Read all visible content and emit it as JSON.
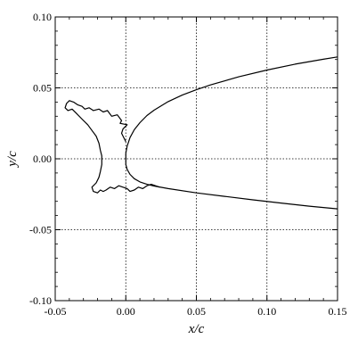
{
  "chart_data": {
    "type": "line",
    "title": "",
    "xlabel": "x/c",
    "ylabel": "y/c",
    "xlim": [
      -0.05,
      0.15
    ],
    "ylim": [
      -0.1,
      0.1
    ],
    "grid": true,
    "x_ticks": [
      -0.05,
      0.0,
      0.05,
      0.1,
      0.15
    ],
    "x_tick_labels": [
      "-0.05",
      "0.00",
      "0.05",
      "0.10",
      "0.15"
    ],
    "y_ticks": [
      -0.1,
      -0.05,
      0.0,
      0.05,
      0.1
    ],
    "y_tick_labels": [
      "-0.10",
      "-0.05",
      "0.00",
      "0.05",
      "0.10"
    ],
    "series": [
      {
        "points": [
          [
            0.15,
            0.0718
          ],
          [
            0.14,
            0.0702
          ],
          [
            0.12,
            0.0667
          ],
          [
            0.1,
            0.0626
          ],
          [
            0.08,
            0.0578
          ],
          [
            0.06,
            0.0521
          ],
          [
            0.05,
            0.0487
          ],
          [
            0.04,
            0.0449
          ],
          [
            0.03,
            0.0403
          ],
          [
            0.02,
            0.0343
          ],
          [
            0.015,
            0.0305
          ],
          [
            0.01,
            0.0255
          ],
          [
            0.006,
            0.0205
          ],
          [
            0.003,
            0.015
          ],
          [
            0.001,
            0.009
          ],
          [
            0.0,
            0.004
          ],
          [
            0.0,
            0.0
          ],
          [
            0.0,
            -0.004
          ],
          [
            0.001,
            -0.0075
          ],
          [
            0.003,
            -0.011
          ],
          [
            0.006,
            -0.014
          ],
          [
            0.01,
            -0.0163
          ],
          [
            0.015,
            -0.018
          ],
          [
            0.02,
            -0.0192
          ],
          [
            0.03,
            -0.021
          ],
          [
            0.05,
            -0.024
          ],
          [
            0.07,
            -0.0265
          ],
          [
            0.09,
            -0.0289
          ],
          [
            0.11,
            -0.0312
          ],
          [
            0.13,
            -0.0334
          ],
          [
            0.15,
            -0.0353
          ]
        ]
      },
      {
        "points": [
          [
            0.0,
            0.012
          ],
          [
            -0.003,
            0.018
          ],
          [
            -0.002,
            0.021
          ],
          [
            0.001,
            0.024
          ],
          [
            -0.004,
            0.025
          ],
          [
            -0.003,
            0.027
          ],
          [
            -0.006,
            0.031
          ],
          [
            -0.01,
            0.03
          ],
          [
            -0.013,
            0.034
          ],
          [
            -0.016,
            0.033
          ],
          [
            -0.019,
            0.035
          ],
          [
            -0.023,
            0.034
          ],
          [
            -0.026,
            0.036
          ],
          [
            -0.029,
            0.035
          ],
          [
            -0.031,
            0.037
          ],
          [
            -0.034,
            0.038
          ],
          [
            -0.037,
            0.04
          ],
          [
            -0.04,
            0.041
          ],
          [
            -0.042,
            0.039
          ],
          [
            -0.043,
            0.036
          ],
          [
            -0.041,
            0.034
          ],
          [
            -0.038,
            0.035
          ],
          [
            -0.035,
            0.032
          ],
          [
            -0.031,
            0.028
          ],
          [
            -0.027,
            0.024
          ],
          [
            -0.024,
            0.02
          ],
          [
            -0.021,
            0.016
          ],
          [
            -0.019,
            0.011
          ],
          [
            -0.018,
            0.006
          ],
          [
            -0.017,
            0.002
          ],
          [
            -0.017,
            -0.004
          ],
          [
            -0.018,
            -0.009
          ],
          [
            -0.019,
            -0.013
          ],
          [
            -0.021,
            -0.017
          ],
          [
            -0.024,
            -0.02
          ],
          [
            -0.023,
            -0.023
          ],
          [
            -0.02,
            -0.024
          ],
          [
            -0.018,
            -0.022
          ],
          [
            -0.016,
            -0.023
          ],
          [
            -0.014,
            -0.022
          ],
          [
            -0.011,
            -0.02
          ],
          [
            -0.008,
            -0.021
          ],
          [
            -0.005,
            -0.019
          ],
          [
            -0.002,
            -0.02
          ],
          [
            0.001,
            -0.021
          ],
          [
            0.003,
            -0.023
          ],
          [
            0.006,
            -0.022
          ],
          [
            0.009,
            -0.02
          ],
          [
            0.012,
            -0.021
          ],
          [
            0.015,
            -0.019
          ],
          [
            0.018,
            -0.018
          ],
          [
            0.021,
            -0.019
          ],
          [
            0.024,
            -0.02
          ]
        ]
      }
    ]
  }
}
